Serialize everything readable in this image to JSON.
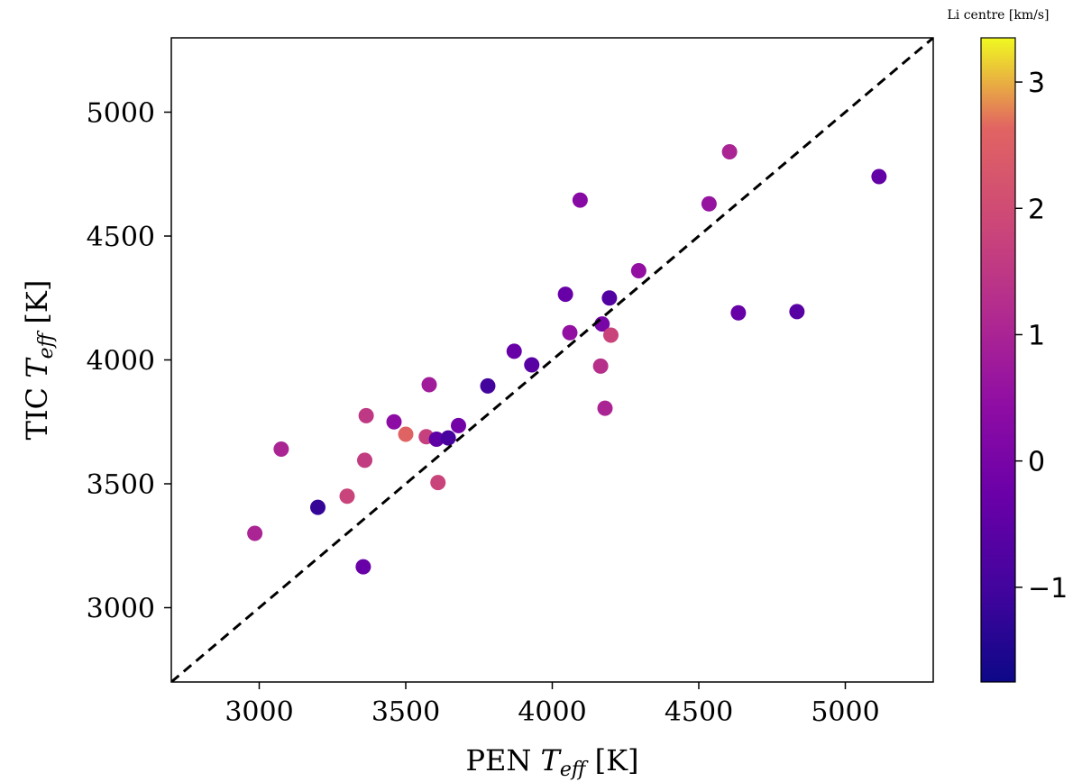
{
  "chart_data": {
    "type": "scatter",
    "xlabel": "PEN",
    "xlabel_sub": "eff",
    "xlabel_unit": "[K]",
    "ylabel": "TIC",
    "ylabel_sub": "eff",
    "ylabel_unit": "[K]",
    "xlim": [
      2700,
      5300
    ],
    "ylim": [
      2700,
      5300
    ],
    "xticks": [
      3000,
      3500,
      4000,
      4500,
      5000
    ],
    "yticks": [
      3000,
      3500,
      4000,
      4500,
      5000
    ],
    "reference_line": "y = x (dashed black)",
    "colorbar": {
      "label": "Li centre [km/s]",
      "colormap": "plasma",
      "range": [
        -1.75,
        3.35
      ],
      "ticks": [
        -1,
        0,
        1,
        2,
        3
      ],
      "tick_labels": [
        "−1",
        "0",
        "1",
        "2",
        "3"
      ]
    },
    "points": [
      {
        "x": 2985,
        "y": 3300,
        "c": 1.0
      },
      {
        "x": 3075,
        "y": 3640,
        "c": 1.0
      },
      {
        "x": 3200,
        "y": 3405,
        "c": -1.2
      },
      {
        "x": 3300,
        "y": 3450,
        "c": 1.8
      },
      {
        "x": 3355,
        "y": 3165,
        "c": -0.3
      },
      {
        "x": 3360,
        "y": 3595,
        "c": 1.6
      },
      {
        "x": 3365,
        "y": 3775,
        "c": 1.5
      },
      {
        "x": 3460,
        "y": 3750,
        "c": 0.4
      },
      {
        "x": 3500,
        "y": 3700,
        "c": 2.6
      },
      {
        "x": 3570,
        "y": 3690,
        "c": 1.7
      },
      {
        "x": 3580,
        "y": 3900,
        "c": 0.8
      },
      {
        "x": 3605,
        "y": 3680,
        "c": -0.5
      },
      {
        "x": 3610,
        "y": 3505,
        "c": 1.8
      },
      {
        "x": 3645,
        "y": 3685,
        "c": -0.9
      },
      {
        "x": 3680,
        "y": 3735,
        "c": -0.1
      },
      {
        "x": 3780,
        "y": 3895,
        "c": -1.0
      },
      {
        "x": 3870,
        "y": 4035,
        "c": -0.3
      },
      {
        "x": 3930,
        "y": 3980,
        "c": -0.6
      },
      {
        "x": 4045,
        "y": 4265,
        "c": -0.3
      },
      {
        "x": 4060,
        "y": 4110,
        "c": 0.5
      },
      {
        "x": 4095,
        "y": 4645,
        "c": 0.3
      },
      {
        "x": 4165,
        "y": 3975,
        "c": 1.3
      },
      {
        "x": 4170,
        "y": 4145,
        "c": 0.0
      },
      {
        "x": 4180,
        "y": 3805,
        "c": 1.0
      },
      {
        "x": 4195,
        "y": 4250,
        "c": -0.7
      },
      {
        "x": 4200,
        "y": 4100,
        "c": 1.8
      },
      {
        "x": 4295,
        "y": 4360,
        "c": 0.5
      },
      {
        "x": 4535,
        "y": 4630,
        "c": 0.6
      },
      {
        "x": 4605,
        "y": 4840,
        "c": 1.0
      },
      {
        "x": 4635,
        "y": 4190,
        "c": -0.3
      },
      {
        "x": 4835,
        "y": 4195,
        "c": -0.6
      },
      {
        "x": 5115,
        "y": 4740,
        "c": -0.4
      }
    ]
  }
}
